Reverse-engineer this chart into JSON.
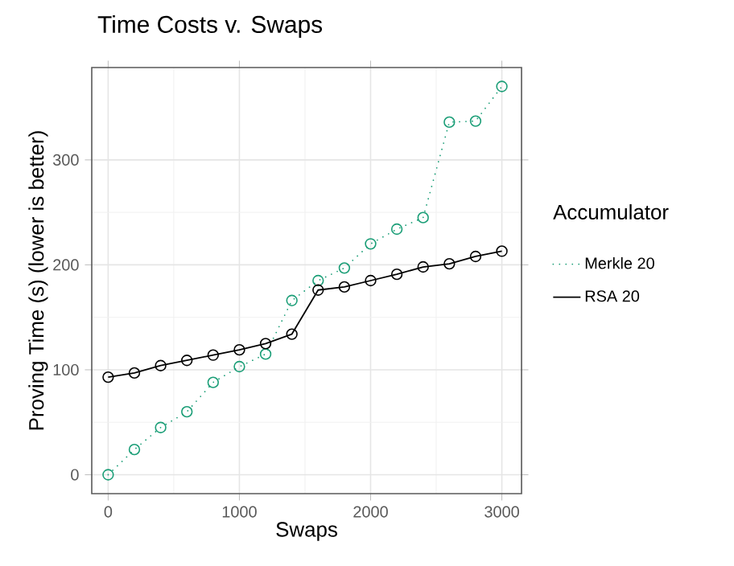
{
  "chart_data": {
    "type": "line",
    "title": "Time Costs v. Swaps",
    "xlabel": "Swaps",
    "ylabel": "Proving Time (s) (lower is better)",
    "legend_title": "Accumulator",
    "x": [
      0,
      200,
      400,
      600,
      800,
      1000,
      1200,
      1400,
      1600,
      1800,
      2000,
      2200,
      2400,
      2600,
      2800,
      3000
    ],
    "series": [
      {
        "name": "Merkle 20",
        "color": "#1b9e77",
        "line_style": "dotted",
        "values": [
          0,
          24,
          45,
          60,
          88,
          103,
          115,
          166,
          185,
          197,
          220,
          234,
          245,
          336,
          337,
          370
        ]
      },
      {
        "name": "RSA 20",
        "color": "#000000",
        "line_style": "solid",
        "values": [
          93,
          97,
          104,
          109,
          114,
          119,
          125,
          134,
          176,
          179,
          185,
          191,
          198,
          201,
          208,
          213
        ]
      }
    ],
    "xlim": [
      -125,
      3150
    ],
    "ylim": [
      -18,
      388
    ],
    "xticks": [
      0,
      1000,
      2000,
      3000
    ],
    "yticks": [
      0,
      100,
      200,
      300
    ],
    "grid": true,
    "legend": "right",
    "marker": "circle"
  }
}
